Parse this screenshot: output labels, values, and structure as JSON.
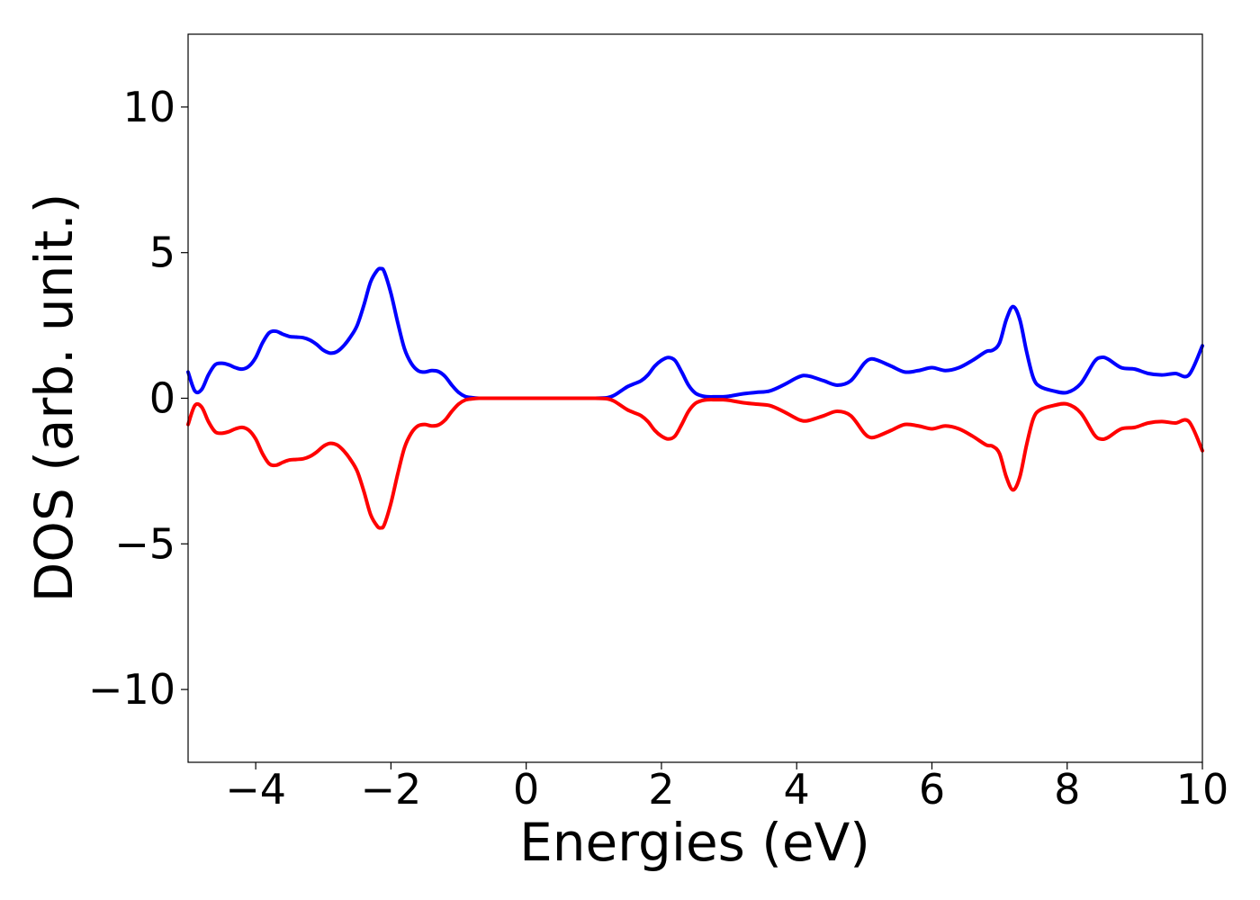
{
  "chart_data": {
    "type": "line",
    "title": "",
    "xlabel": "Energies (eV)",
    "ylabel": "DOS (arb. unit.)",
    "xlim": [
      -5,
      10
    ],
    "ylim": [
      -12.5,
      12.5
    ],
    "x_ticks": [
      -4,
      -2,
      0,
      2,
      4,
      6,
      8,
      10
    ],
    "x_tick_labels": [
      "−4",
      "−2",
      "0",
      "2",
      "4",
      "6",
      "8",
      "10"
    ],
    "y_ticks": [
      -10,
      -5,
      0,
      5,
      10
    ],
    "y_tick_labels": [
      "−10",
      "−5",
      "0",
      "5",
      "10"
    ],
    "grid": false,
    "legend": "none",
    "series": [
      {
        "color": "#0000ff",
        "x": [
          -5.0,
          -4.9,
          -4.8,
          -4.7,
          -4.6,
          -4.5,
          -4.4,
          -4.3,
          -4.2,
          -4.1,
          -4.0,
          -3.9,
          -3.8,
          -3.7,
          -3.6,
          -3.5,
          -3.4,
          -3.3,
          -3.2,
          -3.1,
          -3.0,
          -2.9,
          -2.8,
          -2.7,
          -2.6,
          -2.5,
          -2.4,
          -2.3,
          -2.2,
          -2.15,
          -2.1,
          -2.0,
          -1.9,
          -1.8,
          -1.7,
          -1.6,
          -1.5,
          -1.4,
          -1.3,
          -1.2,
          -1.1,
          -1.0,
          -0.9,
          -0.8,
          -0.7,
          -0.6,
          -0.4,
          0.0,
          0.5,
          1.0,
          1.2,
          1.3,
          1.4,
          1.5,
          1.6,
          1.7,
          1.8,
          1.9,
          2.0,
          2.1,
          2.2,
          2.3,
          2.4,
          2.5,
          2.6,
          2.7,
          2.8,
          2.9,
          3.0,
          3.2,
          3.4,
          3.6,
          3.8,
          4.0,
          4.1,
          4.2,
          4.4,
          4.6,
          4.8,
          5.0,
          5.1,
          5.2,
          5.4,
          5.6,
          5.8,
          6.0,
          6.2,
          6.4,
          6.6,
          6.8,
          6.9,
          7.0,
          7.1,
          7.2,
          7.3,
          7.4,
          7.5,
          7.6,
          7.8,
          8.0,
          8.2,
          8.4,
          8.5,
          8.6,
          8.8,
          9.0,
          9.2,
          9.4,
          9.6,
          9.8,
          10.0
        ],
        "y": [
          0.9,
          0.25,
          0.3,
          0.8,
          1.15,
          1.2,
          1.15,
          1.05,
          1.0,
          1.1,
          1.4,
          1.9,
          2.25,
          2.3,
          2.2,
          2.12,
          2.1,
          2.08,
          2.0,
          1.85,
          1.65,
          1.55,
          1.6,
          1.8,
          2.1,
          2.5,
          3.2,
          4.0,
          4.4,
          4.45,
          4.35,
          3.6,
          2.6,
          1.7,
          1.2,
          0.95,
          0.9,
          0.95,
          0.92,
          0.75,
          0.45,
          0.2,
          0.06,
          0.02,
          0.0,
          0.0,
          0.0,
          0.0,
          0.0,
          0.0,
          0.02,
          0.1,
          0.25,
          0.4,
          0.5,
          0.6,
          0.8,
          1.1,
          1.3,
          1.4,
          1.3,
          0.9,
          0.45,
          0.18,
          0.08,
          0.05,
          0.05,
          0.05,
          0.07,
          0.15,
          0.2,
          0.25,
          0.45,
          0.7,
          0.78,
          0.75,
          0.6,
          0.45,
          0.6,
          1.2,
          1.35,
          1.3,
          1.1,
          0.9,
          0.95,
          1.05,
          0.95,
          1.05,
          1.3,
          1.6,
          1.65,
          1.9,
          2.7,
          3.15,
          2.7,
          1.6,
          0.7,
          0.4,
          0.25,
          0.2,
          0.5,
          1.25,
          1.4,
          1.35,
          1.05,
          1.0,
          0.85,
          0.8,
          0.85,
          0.8,
          1.8
        ]
      },
      {
        "color": "#ff0000",
        "x": [
          -5.0,
          -4.9,
          -4.8,
          -4.7,
          -4.6,
          -4.5,
          -4.4,
          -4.3,
          -4.2,
          -4.1,
          -4.0,
          -3.9,
          -3.8,
          -3.7,
          -3.6,
          -3.5,
          -3.4,
          -3.3,
          -3.2,
          -3.1,
          -3.0,
          -2.9,
          -2.8,
          -2.7,
          -2.6,
          -2.5,
          -2.4,
          -2.3,
          -2.2,
          -2.15,
          -2.1,
          -2.0,
          -1.9,
          -1.8,
          -1.7,
          -1.6,
          -1.5,
          -1.4,
          -1.3,
          -1.2,
          -1.1,
          -1.0,
          -0.9,
          -0.8,
          -0.7,
          -0.6,
          -0.4,
          0.0,
          0.5,
          1.0,
          1.2,
          1.3,
          1.4,
          1.5,
          1.6,
          1.7,
          1.8,
          1.9,
          2.0,
          2.1,
          2.2,
          2.3,
          2.4,
          2.5,
          2.6,
          2.7,
          2.8,
          2.9,
          3.0,
          3.2,
          3.4,
          3.6,
          3.8,
          4.0,
          4.1,
          4.2,
          4.4,
          4.6,
          4.8,
          5.0,
          5.1,
          5.2,
          5.4,
          5.6,
          5.8,
          6.0,
          6.2,
          6.4,
          6.6,
          6.8,
          6.9,
          7.0,
          7.1,
          7.2,
          7.3,
          7.4,
          7.5,
          7.6,
          7.8,
          8.0,
          8.2,
          8.4,
          8.5,
          8.6,
          8.8,
          9.0,
          9.2,
          9.4,
          9.6,
          9.8,
          10.0
        ],
        "y": [
          -0.9,
          -0.25,
          -0.3,
          -0.8,
          -1.15,
          -1.2,
          -1.15,
          -1.05,
          -1.0,
          -1.1,
          -1.4,
          -1.9,
          -2.25,
          -2.3,
          -2.2,
          -2.12,
          -2.1,
          -2.08,
          -2.0,
          -1.85,
          -1.65,
          -1.55,
          -1.6,
          -1.8,
          -2.1,
          -2.5,
          -3.2,
          -4.0,
          -4.4,
          -4.45,
          -4.35,
          -3.6,
          -2.6,
          -1.7,
          -1.2,
          -0.95,
          -0.9,
          -0.95,
          -0.92,
          -0.75,
          -0.45,
          -0.2,
          -0.06,
          -0.02,
          0.0,
          0.0,
          0.0,
          0.0,
          0.0,
          0.0,
          -0.02,
          -0.1,
          -0.25,
          -0.4,
          -0.5,
          -0.6,
          -0.8,
          -1.1,
          -1.3,
          -1.4,
          -1.3,
          -0.9,
          -0.45,
          -0.18,
          -0.08,
          -0.05,
          -0.05,
          -0.05,
          -0.07,
          -0.15,
          -0.2,
          -0.25,
          -0.45,
          -0.7,
          -0.78,
          -0.75,
          -0.6,
          -0.45,
          -0.6,
          -1.2,
          -1.35,
          -1.3,
          -1.1,
          -0.9,
          -0.95,
          -1.05,
          -0.95,
          -1.05,
          -1.3,
          -1.6,
          -1.65,
          -1.9,
          -2.7,
          -3.15,
          -2.7,
          -1.6,
          -0.7,
          -0.4,
          -0.25,
          -0.2,
          -0.5,
          -1.25,
          -1.4,
          -1.35,
          -1.05,
          -1.0,
          -0.85,
          -0.8,
          -0.85,
          -0.8,
          -1.8
        ]
      }
    ]
  }
}
